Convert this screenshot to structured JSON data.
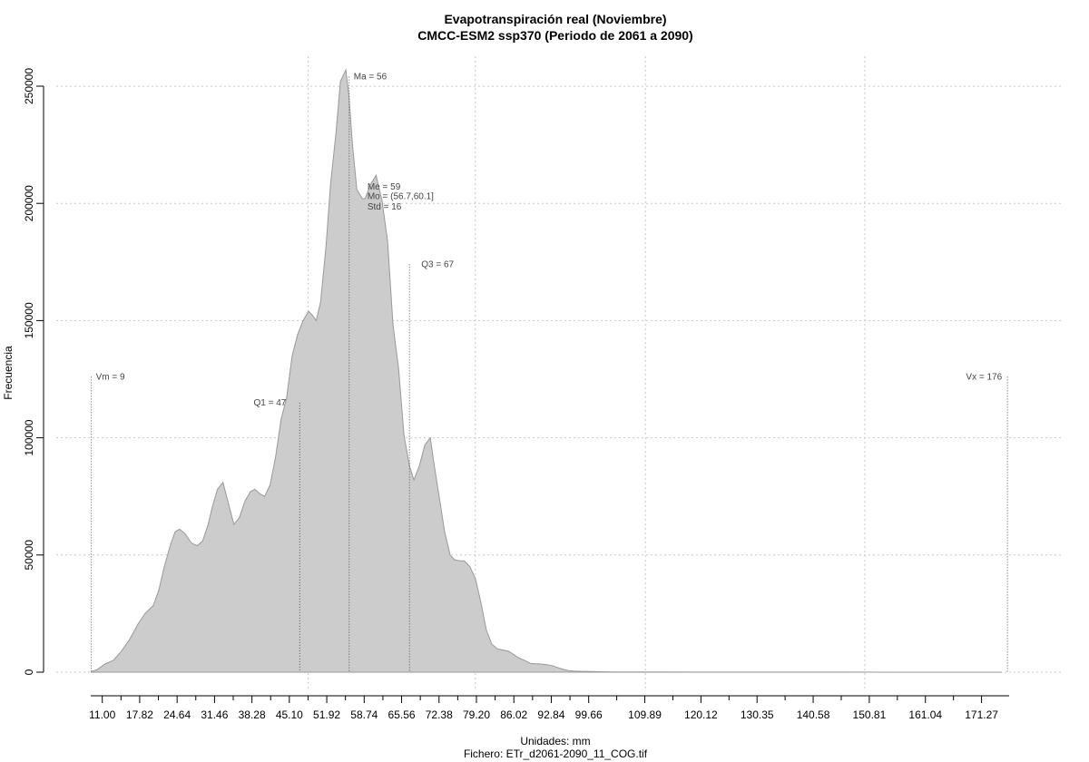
{
  "chart_data": {
    "type": "area",
    "title": "Evapotranspiración real (Noviembre)",
    "subtitle": "CMCC-ESM2 ssp370 (Periodo de 2061 a 2090)",
    "xlabel": "Unidades: mm",
    "footer": "Fichero: ETr_d2061-2090_11_COG.tif",
    "ylabel": "Frecuencia",
    "xlim": [
      8.9,
      176.3
    ],
    "ylim": [
      0,
      257000
    ],
    "grid": true,
    "fill_color": "#cccccc",
    "line_color": "#999999",
    "x_ticks": [
      11.0,
      17.82,
      24.64,
      31.46,
      38.28,
      45.1,
      51.92,
      58.74,
      65.56,
      72.38,
      79.2,
      86.02,
      92.84,
      99.66,
      109.89,
      120.12,
      130.35,
      140.58,
      150.81,
      161.04,
      171.27
    ],
    "x_tick_labels": [
      "11.00",
      "17.82",
      "24.64",
      "31.46",
      "38.28",
      "45.10",
      "51.92",
      "58.74",
      "65.56",
      "72.38",
      "79.20",
      "86.02",
      "92.84",
      "99.66",
      "109.89",
      "120.12",
      "130.35",
      "140.58",
      "150.81",
      "161.04",
      "171.27"
    ],
    "y_ticks": [
      0,
      50000,
      100000,
      150000,
      200000,
      250000
    ],
    "y_tick_labels": [
      "0",
      "50000",
      "100000",
      "150000",
      "200000",
      "250000"
    ],
    "x_grid": [
      48.5,
      79.0,
      110.0,
      150.0
    ],
    "y_grid": [
      0,
      50000,
      100000,
      150000,
      200000,
      250000
    ],
    "x": [
      9.0,
      10.0,
      11.5,
      13.0,
      14.5,
      16.0,
      17.5,
      18.8,
      20.3,
      21.3,
      22.3,
      23.5,
      24.3,
      25.1,
      26.1,
      27.3,
      28.3,
      29.3,
      30.3,
      31.0,
      32.0,
      33.0,
      34.0,
      35.0,
      36.0,
      37.0,
      38.0,
      38.8,
      39.8,
      40.6,
      41.6,
      42.6,
      43.6,
      44.6,
      45.6,
      46.6,
      47.6,
      48.6,
      49.4,
      50.0,
      50.8,
      51.8,
      52.6,
      53.6,
      54.4,
      55.4,
      56.0,
      56.6,
      57.4,
      58.4,
      58.9,
      59.9,
      60.9,
      62.0,
      63.0,
      64.0,
      65.0,
      66.0,
      67.0,
      67.8,
      68.8,
      69.8,
      70.8,
      71.4,
      72.4,
      73.4,
      74.4,
      75.2,
      76.2,
      77.0,
      78.0,
      79.0,
      80.0,
      81.0,
      82.0,
      83.0,
      84.0,
      85.0,
      86.0,
      87.0,
      88.0,
      89.0,
      90.0,
      91.0,
      92.0,
      93.0,
      94.0,
      95.0,
      96.0,
      97.0,
      98.0,
      99.0,
      100.0,
      101.0,
      102.0,
      103.0,
      104.0,
      106.0,
      109.0,
      113.0,
      118.0,
      125.0,
      135.0,
      145.0,
      155.0,
      165.0,
      172.0,
      175.0
    ],
    "values": [
      300,
      1000,
      3500,
      5000,
      9000,
      14000,
      20500,
      25000,
      28500,
      35000,
      45000,
      55000,
      60000,
      61000,
      59000,
      55000,
      54000,
      56000,
      63000,
      70000,
      78000,
      81000,
      72000,
      63000,
      66000,
      73000,
      77000,
      78000,
      76000,
      75000,
      80000,
      92000,
      108000,
      117000,
      135000,
      144000,
      150000,
      154000,
      152000,
      150000,
      158000,
      182000,
      208000,
      230000,
      252000,
      257000,
      245000,
      225000,
      206000,
      202000,
      202000,
      208000,
      212000,
      201000,
      184000,
      148000,
      130000,
      101000,
      88000,
      82000,
      88000,
      97000,
      100000,
      90000,
      75000,
      60000,
      50000,
      48000,
      47500,
      47500,
      45000,
      40000,
      30000,
      18000,
      12000,
      10000,
      9500,
      9000,
      7500,
      6000,
      5000,
      3800,
      3600,
      3500,
      3200,
      2800,
      2000,
      1200,
      700,
      500,
      400,
      350,
      300,
      250,
      200,
      150,
      120,
      100,
      80,
      60,
      50,
      40,
      30,
      20,
      10,
      5,
      0,
      0
    ],
    "annotations": [
      {
        "label": "Vm = 9",
        "x": 9.0,
        "y": 126000,
        "line": true
      },
      {
        "label": "Q1 = 47",
        "x": 47.0,
        "y": 115000,
        "line": true
      },
      {
        "label": "Ma = 56",
        "x": 56.0,
        "y": 254000,
        "line": true
      },
      {
        "label": "Me = 59",
        "x": 58.5,
        "y": 207000,
        "line": false
      },
      {
        "label": "Mo = (56.7,60.1]",
        "x": 58.5,
        "y": 203000,
        "line": false
      },
      {
        "label": "Std = 16",
        "x": 58.5,
        "y": 198500,
        "line": false
      },
      {
        "label": "Q3 = 67",
        "x": 67.0,
        "y": 174000,
        "line": true
      },
      {
        "label": "Vx = 176",
        "x": 176.0,
        "y": 126000,
        "line": true
      }
    ]
  }
}
